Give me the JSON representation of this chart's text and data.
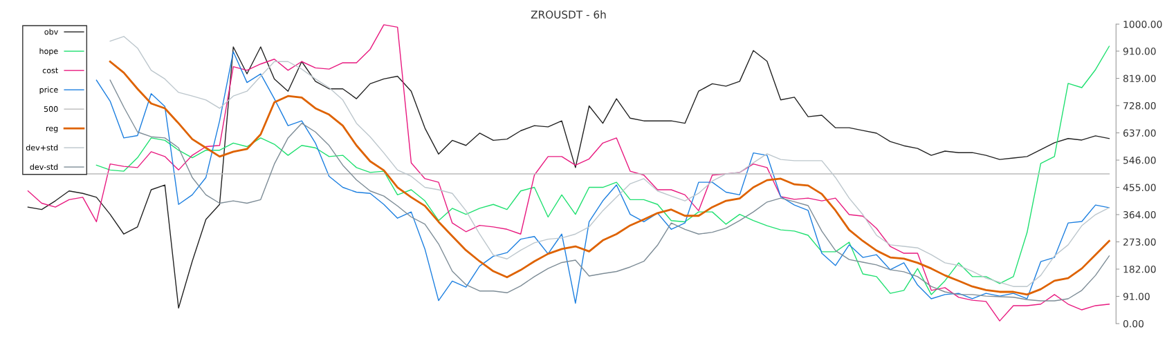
{
  "chart_data": {
    "type": "line",
    "title": "ZROUSDT - 6h",
    "categories": [
      null,
      null,
      null,
      null,
      null,
      null,
      null,
      null,
      null,
      null,
      null,
      null,
      null,
      null,
      null,
      null,
      null,
      null,
      null,
      null,
      null,
      null,
      null,
      null,
      null,
      null,
      null,
      null,
      null,
      null,
      null,
      null,
      null,
      null,
      null,
      null,
      null,
      null,
      null,
      null,
      null,
      null,
      null,
      null,
      null,
      null,
      null,
      null,
      null,
      null,
      null,
      null,
      null,
      null,
      null,
      null,
      null,
      null,
      null,
      null,
      null,
      null,
      null,
      null,
      null,
      null,
      null,
      null,
      null,
      null,
      null,
      null,
      null,
      null,
      null,
      null,
      null,
      null,
      null,
      null
    ],
    "series": [
      {
        "name": "obv",
        "color": "#222222",
        "values": [
          389,
          381,
          410,
          443,
          435,
          422,
          365,
          299,
          323,
          447,
          463,
          52,
          208,
          348,
          398,
          924,
          834,
          924,
          817,
          776,
          875,
          809,
          784,
          784,
          751,
          801,
          817,
          826,
          776,
          653,
          566,
          612,
          595,
          636,
          612,
          616,
          644,
          661,
          657,
          677,
          521,
          727,
          669,
          751,
          686,
          677,
          677,
          677,
          669,
          776,
          801,
          793,
          809,
          912,
          876,
          747,
          756,
          691,
          696,
          654,
          654,
          645,
          636,
          608,
          594,
          585,
          562,
          576,
          571,
          571,
          562,
          548,
          553,
          558,
          581,
          604,
          618,
          613,
          627,
          618
        ]
      },
      {
        "name": "hope",
        "color": "#1fe070",
        "values": [
          null,
          null,
          null,
          null,
          null,
          529,
          513,
          509,
          554,
          620,
          612,
          579,
          554,
          579,
          579,
          603,
          591,
          620,
          599,
          562,
          595,
          587,
          558,
          562,
          521,
          505,
          509,
          430,
          447,
          410,
          344,
          385,
          365,
          385,
          398,
          381,
          443,
          455,
          356,
          430,
          365,
          455,
          455,
          472,
          414,
          414,
          398,
          344,
          340,
          373,
          373,
          332,
          365,
          344,
          327,
          313,
          309,
          295,
          240,
          240,
          272,
          166,
          157,
          101,
          111,
          184,
          97,
          143,
          203,
          157,
          157,
          134,
          157,
          304,
          535,
          558,
          802,
          788,
          848,
          926
        ]
      },
      {
        "name": "cost",
        "color": "#e8197f",
        "values": [
          443,
          402,
          389,
          414,
          422,
          340,
          533,
          525,
          521,
          574,
          558,
          513,
          562,
          591,
          595,
          858,
          846,
          867,
          883,
          846,
          875,
          854,
          850,
          871,
          871,
          916,
          998,
          990,
          537,
          484,
          472,
          336,
          307,
          328,
          323,
          315,
          299,
          496,
          558,
          558,
          529,
          550,
          603,
          620,
          509,
          496,
          447,
          447,
          430,
          377,
          496,
          500,
          505,
          533,
          521,
          424,
          415,
          419,
          410,
          419,
          364,
          359,
          318,
          258,
          235,
          235,
          111,
          120,
          88,
          78,
          74,
          9,
          60,
          60,
          65,
          97,
          65,
          46,
          60,
          65
        ]
      },
      {
        "name": "price",
        "color": "#1c7fe0",
        "values": [
          null,
          null,
          null,
          null,
          null,
          813,
          743,
          620,
          628,
          768,
          725,
          398,
          430,
          488,
          677,
          908,
          805,
          834,
          751,
          661,
          677,
          603,
          492,
          455,
          439,
          435,
          398,
          352,
          373,
          249,
          77,
          142,
          122,
          192,
          225,
          237,
          282,
          291,
          233,
          299,
          68,
          340,
          410,
          463,
          365,
          340,
          369,
          315,
          336,
          472,
          472,
          439,
          430,
          570,
          562,
          424,
          396,
          378,
          235,
          194,
          263,
          221,
          230,
          180,
          203,
          129,
          83,
          97,
          101,
          83,
          101,
          92,
          101,
          83,
          207,
          221,
          336,
          341,
          396,
          387
        ]
      },
      {
        "name": "500",
        "color": "#bbbbbb",
        "values": [
          500,
          500,
          500,
          500,
          500,
          500,
          500,
          500,
          500,
          500,
          500,
          500,
          500,
          500,
          500,
          500,
          500,
          500,
          500,
          500,
          500,
          500,
          500,
          500,
          500,
          500,
          500,
          500,
          500,
          500,
          500,
          500,
          500,
          500,
          500,
          500,
          500,
          500,
          500,
          500,
          500,
          500,
          500,
          500,
          500,
          500,
          500,
          500,
          500,
          500,
          500,
          500,
          500,
          500,
          500,
          500,
          500,
          500,
          500,
          500,
          500,
          500,
          500,
          500,
          500,
          500,
          500,
          500,
          500,
          500,
          500,
          500,
          500,
          500,
          500,
          500,
          500,
          500,
          500,
          500
        ]
      },
      {
        "name": "reg",
        "color": "#de6200",
        "values": [
          null,
          null,
          null,
          null,
          null,
          null,
          875,
          838,
          784,
          735,
          719,
          669,
          616,
          587,
          558,
          574,
          583,
          632,
          739,
          760,
          755,
          719,
          698,
          661,
          595,
          542,
          512,
          455,
          422,
          393,
          340,
          292,
          245,
          208,
          175,
          155,
          179,
          208,
          233,
          249,
          258,
          241,
          278,
          299,
          328,
          348,
          369,
          381,
          360,
          360,
          389,
          410,
          418,
          455,
          479,
          484,
          465,
          461,
          433,
          378,
          313,
          276,
          244,
          221,
          217,
          203,
          184,
          161,
          143,
          124,
          112,
          106,
          106,
          97,
          115,
          143,
          152,
          184,
          230,
          276
        ]
      },
      {
        "name": "dev+std",
        "color": "#bcc6cc",
        "values": [
          null,
          null,
          null,
          null,
          null,
          null,
          943,
          959,
          920,
          846,
          817,
          772,
          760,
          747,
          719,
          760,
          776,
          826,
          875,
          875,
          850,
          817,
          788,
          747,
          669,
          624,
          570,
          513,
          492,
          455,
          447,
          435,
          377,
          299,
          229,
          216,
          245,
          270,
          282,
          286,
          299,
          323,
          377,
          422,
          467,
          484,
          443,
          426,
          410,
          435,
          476,
          500,
          505,
          537,
          567,
          548,
          544,
          544,
          544,
          488,
          419,
          364,
          295,
          263,
          258,
          253,
          230,
          203,
          194,
          175,
          152,
          138,
          124,
          124,
          161,
          226,
          263,
          327,
          364,
          387
        ]
      },
      {
        "name": "dev-std",
        "color": "#7d8c96",
        "values": [
          null,
          null,
          null,
          null,
          null,
          null,
          813,
          723,
          640,
          624,
          620,
          587,
          488,
          430,
          402,
          410,
          402,
          414,
          533,
          620,
          669,
          640,
          595,
          529,
          480,
          443,
          426,
          393,
          356,
          332,
          266,
          175,
          130,
          109,
          109,
          103,
          126,
          157,
          184,
          204,
          212,
          159,
          167,
          174,
          189,
          208,
          262,
          336,
          315,
          299,
          305,
          319,
          344,
          373,
          406,
          419,
          407,
          394,
          309,
          244,
          214,
          205,
          196,
          180,
          173,
          157,
          124,
          106,
          97,
          97,
          92,
          90,
          88,
          80,
          76,
          76,
          83,
          111,
          161,
          226
        ]
      }
    ],
    "ylim": [
      0,
      1000
    ],
    "yticks": [
      {
        "value": 0,
        "label": "0.00"
      },
      {
        "value": 91,
        "label": "91.00"
      },
      {
        "value": 182,
        "label": "182.00"
      },
      {
        "value": 273,
        "label": "273.00"
      },
      {
        "value": 364,
        "label": "364.00"
      },
      {
        "value": 455,
        "label": "455.00"
      },
      {
        "value": 546,
        "label": "546.00"
      },
      {
        "value": 637,
        "label": "637.00"
      },
      {
        "value": 728,
        "label": "728.00"
      },
      {
        "value": 819,
        "label": "819.00"
      },
      {
        "value": 910,
        "label": "910.00"
      },
      {
        "value": 1000,
        "label": "1000.00"
      }
    ],
    "tick_labels": "y",
    "legend": "top left",
    "grid": false
  }
}
